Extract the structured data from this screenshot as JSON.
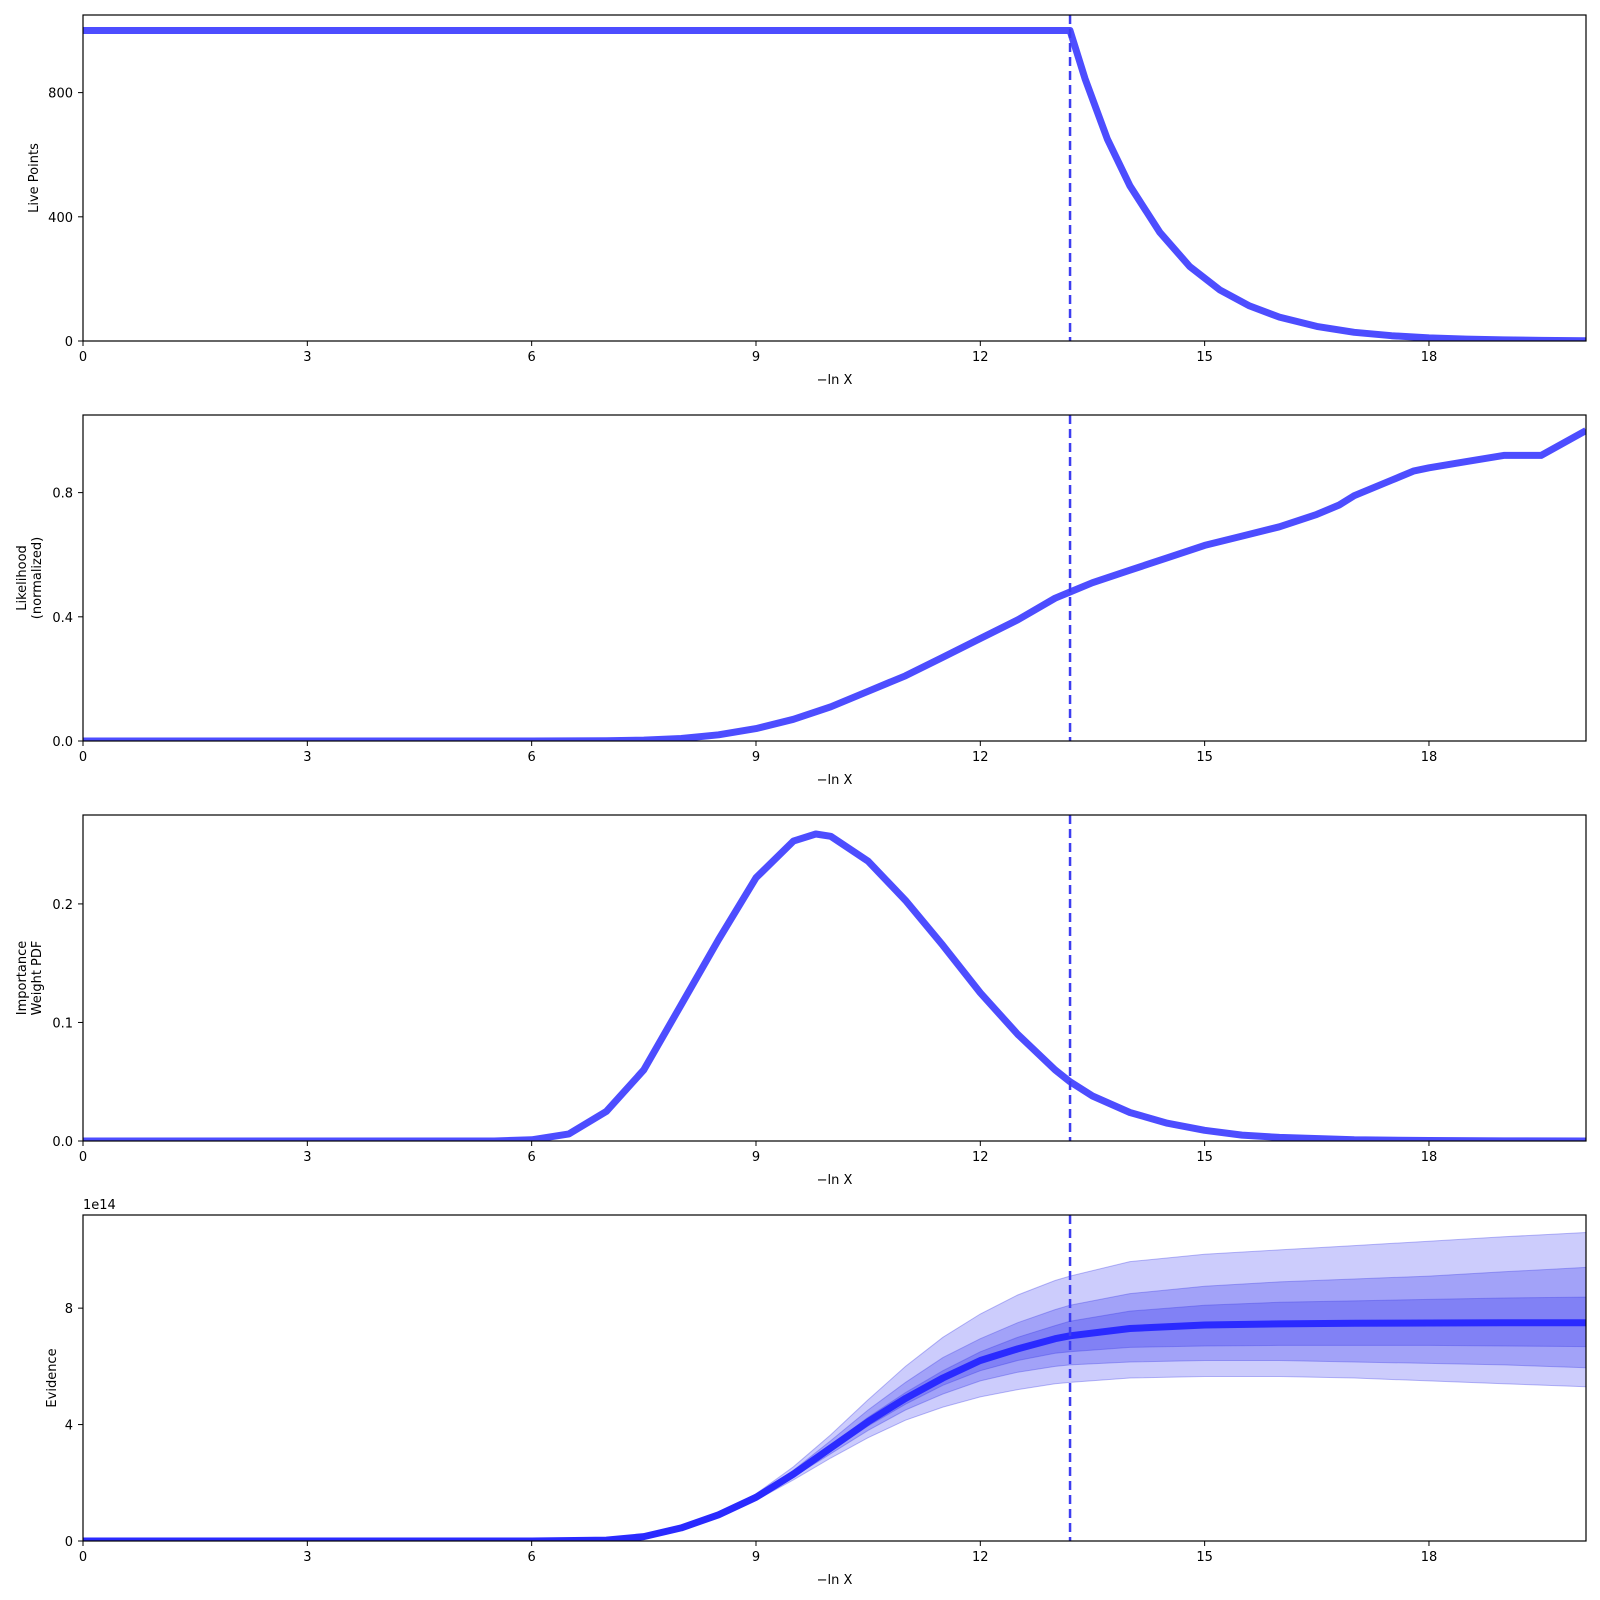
{
  "chart_data": [
    {
      "type": "line",
      "xlabel": "−ln X",
      "ylabel": "Live Points",
      "xlim": [
        0,
        20.1
      ],
      "ylim": [
        0,
        1050
      ],
      "xticks": [
        0,
        3,
        6,
        9,
        12,
        15,
        18
      ],
      "yticks": [
        0,
        400,
        800
      ],
      "ytick_labels": [
        "0",
        "400",
        "800"
      ],
      "vline_x": 13.2,
      "series": [
        {
          "x": [
            0,
            13.2,
            13.4,
            13.7,
            14.0,
            14.4,
            14.8,
            15.2,
            15.6,
            16.0,
            16.5,
            17.0,
            17.5,
            18.0,
            18.5,
            19.0,
            19.5,
            20.1
          ],
          "y": [
            1000,
            1000,
            845,
            650,
            500,
            350,
            240,
            165,
            113,
            77,
            47,
            28,
            17,
            10,
            6,
            3.5,
            2,
            1
          ]
        }
      ]
    },
    {
      "type": "line",
      "xlabel": "−ln X",
      "ylabel": [
        "Likelihood",
        "(normalized)"
      ],
      "xlim": [
        0,
        20.1
      ],
      "ylim": [
        0,
        1.05
      ],
      "xticks": [
        0,
        3,
        6,
        9,
        12,
        15,
        18
      ],
      "yticks": [
        0,
        0.4,
        0.8
      ],
      "ytick_labels": [
        "0.0",
        "0.4",
        "0.8"
      ],
      "vline_x": 13.2,
      "series": [
        {
          "x": [
            0,
            6.0,
            7.0,
            7.5,
            8.0,
            8.5,
            9.0,
            9.5,
            10.0,
            10.5,
            11.0,
            11.5,
            12.0,
            12.5,
            13.0,
            13.2,
            13.5,
            14.0,
            14.5,
            15.0,
            15.5,
            16.0,
            16.5,
            16.8,
            17.0,
            17.5,
            17.8,
            18.0,
            18.5,
            19.0,
            19.5,
            20.1
          ],
          "y": [
            0,
            0,
            0.001,
            0.003,
            0.008,
            0.02,
            0.04,
            0.07,
            0.11,
            0.16,
            0.21,
            0.27,
            0.33,
            0.39,
            0.46,
            0.48,
            0.51,
            0.55,
            0.59,
            0.63,
            0.66,
            0.69,
            0.73,
            0.76,
            0.79,
            0.84,
            0.87,
            0.88,
            0.9,
            0.92,
            0.92,
            1.0
          ]
        }
      ]
    },
    {
      "type": "line",
      "xlabel": "−ln X",
      "ylabel": [
        "Importance",
        "Weight PDF"
      ],
      "xlim": [
        0,
        20.1
      ],
      "ylim": [
        0,
        0.275
      ],
      "xticks": [
        0,
        3,
        6,
        9,
        12,
        15,
        18
      ],
      "yticks": [
        0,
        0.1,
        0.2
      ],
      "ytick_labels": [
        "0.0",
        "0.1",
        "0.2"
      ],
      "vline_x": 13.2,
      "series": [
        {
          "x": [
            0,
            5.5,
            6.0,
            6.5,
            7.0,
            7.5,
            8.0,
            8.5,
            9.0,
            9.5,
            9.8,
            10.0,
            10.5,
            11.0,
            11.5,
            12.0,
            12.5,
            13.0,
            13.2,
            13.5,
            14.0,
            14.5,
            15.0,
            15.5,
            16.0,
            17.0,
            18.0,
            19.0,
            20.1
          ],
          "y": [
            0,
            0,
            0.001,
            0.006,
            0.025,
            0.06,
            0.115,
            0.17,
            0.222,
            0.253,
            0.259,
            0.257,
            0.236,
            0.203,
            0.165,
            0.125,
            0.09,
            0.06,
            0.05,
            0.038,
            0.024,
            0.015,
            0.009,
            0.005,
            0.003,
            0.001,
            0.0004,
            0.0001,
            0
          ]
        }
      ]
    },
    {
      "type": "area",
      "xlabel": "−ln X",
      "ylabel": "Evidence",
      "y_exponent": "1e14",
      "xlim": [
        0,
        20.1
      ],
      "ylim": [
        0,
        11.2
      ],
      "xticks": [
        0,
        3,
        6,
        9,
        12,
        15,
        18
      ],
      "yticks": [
        0,
        4,
        8
      ],
      "ytick_labels": [
        "0",
        "4",
        "8"
      ],
      "vline_x": 13.2,
      "series": [
        {
          "x": [
            0,
            6.0,
            7.0,
            7.5,
            8.0,
            8.5,
            9.0,
            9.5,
            10.0,
            10.5,
            11.0,
            11.5,
            12.0,
            12.5,
            13.0,
            13.2,
            14.0,
            15.0,
            16.0,
            17.0,
            18.0,
            19.0,
            20.1
          ],
          "y": [
            0,
            0,
            0.03,
            0.15,
            0.45,
            0.9,
            1.5,
            2.3,
            3.2,
            4.1,
            4.9,
            5.6,
            6.2,
            6.6,
            6.95,
            7.05,
            7.3,
            7.42,
            7.46,
            7.48,
            7.49,
            7.5,
            7.5
          ]
        }
      ],
      "bands": [
        {
          "lower": [
            0,
            0,
            0.03,
            0.14,
            0.42,
            0.85,
            1.4,
            2.1,
            2.85,
            3.55,
            4.15,
            4.6,
            4.95,
            5.2,
            5.4,
            5.45,
            5.6,
            5.65,
            5.65,
            5.6,
            5.5,
            5.4,
            5.3
          ],
          "upper": [
            0,
            0,
            0.03,
            0.16,
            0.48,
            0.96,
            1.62,
            2.55,
            3.65,
            4.85,
            6.0,
            7.0,
            7.8,
            8.45,
            8.95,
            9.1,
            9.6,
            9.85,
            10.0,
            10.15,
            10.3,
            10.45,
            10.6
          ]
        },
        {
          "lower": [
            0,
            0,
            0.03,
            0.145,
            0.435,
            0.87,
            1.45,
            2.2,
            3.0,
            3.8,
            4.5,
            5.05,
            5.5,
            5.8,
            6.0,
            6.05,
            6.15,
            6.2,
            6.2,
            6.15,
            6.1,
            6.05,
            5.95
          ],
          "upper": [
            0,
            0,
            0.03,
            0.155,
            0.465,
            0.93,
            1.56,
            2.43,
            3.45,
            4.5,
            5.45,
            6.3,
            6.95,
            7.5,
            7.95,
            8.1,
            8.5,
            8.75,
            8.9,
            9.0,
            9.1,
            9.25,
            9.4
          ]
        },
        {
          "lower": [
            0,
            0,
            0.03,
            0.148,
            0.443,
            0.885,
            1.48,
            2.25,
            3.1,
            3.95,
            4.7,
            5.35,
            5.85,
            6.2,
            6.45,
            6.5,
            6.65,
            6.7,
            6.72,
            6.72,
            6.72,
            6.7,
            6.68
          ],
          "upper": [
            0,
            0,
            0.03,
            0.152,
            0.457,
            0.915,
            1.52,
            2.35,
            3.3,
            4.25,
            5.1,
            5.85,
            6.5,
            7.0,
            7.4,
            7.55,
            7.9,
            8.1,
            8.2,
            8.25,
            8.3,
            8.35,
            8.38
          ]
        }
      ]
    }
  ]
}
